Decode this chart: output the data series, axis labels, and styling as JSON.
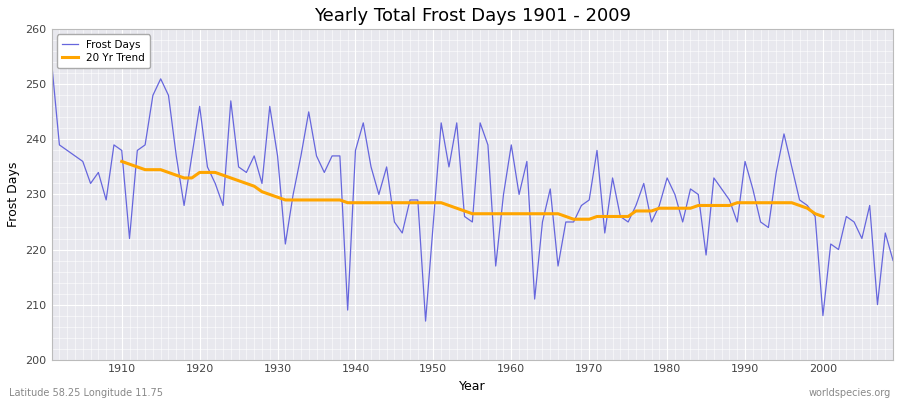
{
  "title": "Yearly Total Frost Days 1901 - 2009",
  "xlabel": "Year",
  "ylabel": "Frost Days",
  "bottom_left_label": "Latitude 58.25 Longitude 11.75",
  "bottom_right_label": "worldspecies.org",
  "legend_frost": "Frost Days",
  "legend_trend": "20 Yr Trend",
  "ylim": [
    200,
    260
  ],
  "xlim": [
    1901,
    2009
  ],
  "frost_color": "#6666dd",
  "trend_color": "#FFA500",
  "bg_color": "#e8e8ee",
  "years": [
    1901,
    1902,
    1903,
    1904,
    1905,
    1906,
    1907,
    1908,
    1909,
    1910,
    1911,
    1912,
    1913,
    1914,
    1915,
    1916,
    1917,
    1918,
    1919,
    1920,
    1921,
    1922,
    1923,
    1924,
    1925,
    1926,
    1927,
    1928,
    1929,
    1930,
    1931,
    1932,
    1933,
    1934,
    1935,
    1936,
    1937,
    1938,
    1939,
    1940,
    1941,
    1942,
    1943,
    1944,
    1945,
    1946,
    1947,
    1948,
    1949,
    1950,
    1951,
    1952,
    1953,
    1954,
    1955,
    1956,
    1957,
    1958,
    1959,
    1960,
    1961,
    1962,
    1963,
    1964,
    1965,
    1966,
    1967,
    1968,
    1969,
    1970,
    1971,
    1972,
    1973,
    1974,
    1975,
    1976,
    1977,
    1978,
    1979,
    1980,
    1981,
    1982,
    1983,
    1984,
    1985,
    1986,
    1987,
    1988,
    1989,
    1990,
    1991,
    1992,
    1993,
    1994,
    1995,
    1996,
    1997,
    1998,
    1999,
    2000,
    2001,
    2002,
    2003,
    2004,
    2005,
    2006,
    2007,
    2008,
    2009
  ],
  "frost_values": [
    254,
    239,
    238,
    237,
    236,
    232,
    234,
    229,
    239,
    238,
    222,
    238,
    239,
    248,
    251,
    248,
    237,
    228,
    237,
    246,
    235,
    232,
    228,
    247,
    235,
    234,
    237,
    232,
    246,
    237,
    221,
    230,
    237,
    245,
    237,
    234,
    237,
    237,
    209,
    238,
    243,
    235,
    230,
    235,
    225,
    223,
    229,
    229,
    207,
    225,
    243,
    235,
    243,
    226,
    225,
    243,
    239,
    217,
    230,
    239,
    230,
    236,
    211,
    225,
    231,
    217,
    225,
    225,
    228,
    229,
    238,
    223,
    233,
    226,
    225,
    228,
    232,
    225,
    228,
    233,
    230,
    225,
    231,
    230,
    219,
    233,
    231,
    229,
    225,
    236,
    231,
    225,
    224,
    234,
    241,
    235,
    229,
    228,
    226,
    208,
    221,
    220,
    226,
    225,
    222,
    228,
    210,
    223,
    218
  ],
  "trend_years": [
    1910,
    1911,
    1912,
    1913,
    1914,
    1915,
    1916,
    1917,
    1918,
    1919,
    1920,
    1921,
    1922,
    1923,
    1924,
    1925,
    1926,
    1927,
    1928,
    1929,
    1930,
    1931,
    1932,
    1933,
    1934,
    1935,
    1936,
    1937,
    1938,
    1939,
    1940,
    1941,
    1942,
    1943,
    1944,
    1945,
    1946,
    1947,
    1948,
    1949,
    1950,
    1951,
    1952,
    1953,
    1954,
    1955,
    1956,
    1957,
    1958,
    1959,
    1960,
    1961,
    1962,
    1963,
    1964,
    1965,
    1966,
    1967,
    1968,
    1969,
    1970,
    1971,
    1972,
    1973,
    1974,
    1975,
    1976,
    1977,
    1978,
    1979,
    1980,
    1981,
    1982,
    1983,
    1984,
    1985,
    1986,
    1987,
    1988,
    1989,
    1990,
    1991,
    1992,
    1993,
    1994,
    1995,
    1996,
    1997,
    1998,
    1999,
    2000
  ],
  "trend_values": [
    236.0,
    235.5,
    235.0,
    234.5,
    234.5,
    234.5,
    234.0,
    233.5,
    233.0,
    233.0,
    234.0,
    234.0,
    234.0,
    233.5,
    233.0,
    232.5,
    232.0,
    231.5,
    230.5,
    230.0,
    229.5,
    229.0,
    229.0,
    229.0,
    229.0,
    229.0,
    229.0,
    229.0,
    229.0,
    228.5,
    228.5,
    228.5,
    228.5,
    228.5,
    228.5,
    228.5,
    228.5,
    228.5,
    228.5,
    228.5,
    228.5,
    228.5,
    228.0,
    227.5,
    227.0,
    226.5,
    226.5,
    226.5,
    226.5,
    226.5,
    226.5,
    226.5,
    226.5,
    226.5,
    226.5,
    226.5,
    226.5,
    226.0,
    225.5,
    225.5,
    225.5,
    226.0,
    226.0,
    226.0,
    226.0,
    226.0,
    227.0,
    227.0,
    227.0,
    227.5,
    227.5,
    227.5,
    227.5,
    227.5,
    228.0,
    228.0,
    228.0,
    228.0,
    228.0,
    228.5,
    228.5,
    228.5,
    228.5,
    228.5,
    228.5,
    228.5,
    228.5,
    228.0,
    227.5,
    226.5,
    226.0
  ]
}
